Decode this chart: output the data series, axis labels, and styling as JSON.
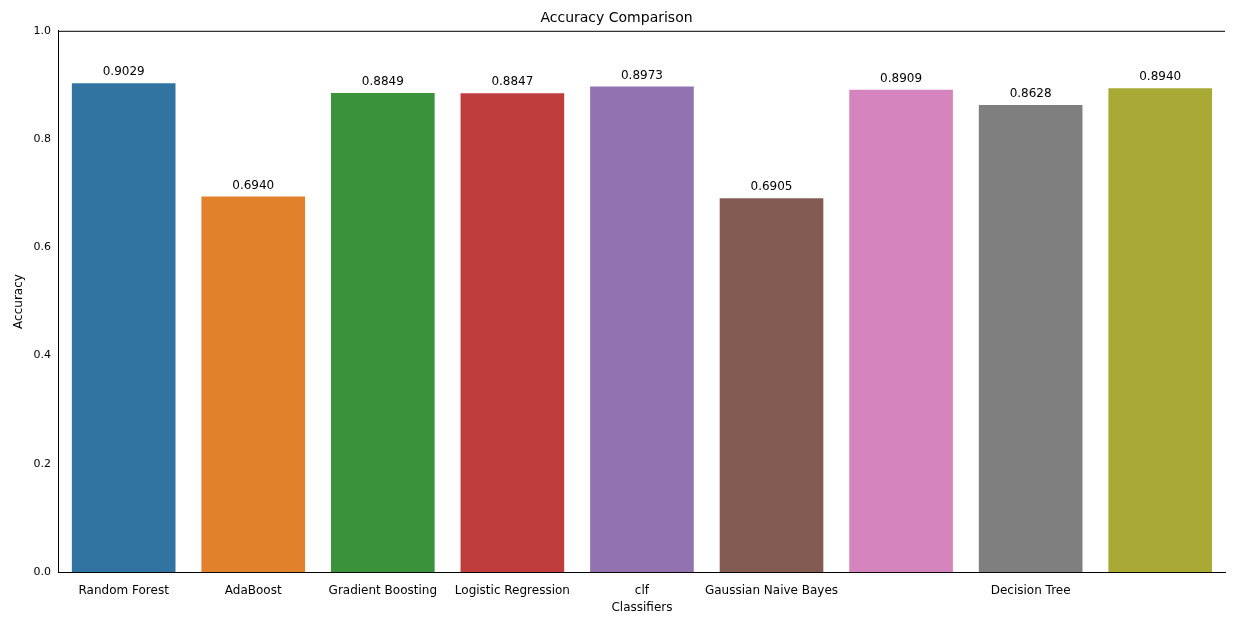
{
  "chart_data": {
    "type": "bar",
    "title": "Accuracy Comparison",
    "xlabel": "Classifiers",
    "ylabel": "Accuracy",
    "categories": [
      "Random Forest",
      "AdaBoost",
      "Gradient Boosting",
      "Logistic Regression",
      "clf",
      "Gaussian Naive Bayes",
      null,
      "Decision Tree",
      null
    ],
    "values": [
      0.9029,
      0.694,
      0.8849,
      0.8847,
      0.8973,
      0.6905,
      0.8909,
      0.8628,
      0.894
    ],
    "value_labels": [
      "0.9029",
      "0.6940",
      "0.8849",
      "0.8847",
      "0.8973",
      "0.6905",
      "0.8909",
      "0.8628",
      "0.8940"
    ],
    "colors": [
      "#3274a1",
      "#e1812c",
      "#3a923a",
      "#c03d3e",
      "#9372b2",
      "#845b53",
      "#d684bd",
      "#7f7f7f",
      "#a9aa35"
    ],
    "ylim": [
      0,
      1
    ],
    "yticks": [
      {
        "value": 0,
        "label": "0.0"
      },
      0.2,
      0.4,
      0.6,
      0.8,
      {
        "value": 1,
        "label": "1.0"
      }
    ],
    "grid": false,
    "legend": false
  }
}
